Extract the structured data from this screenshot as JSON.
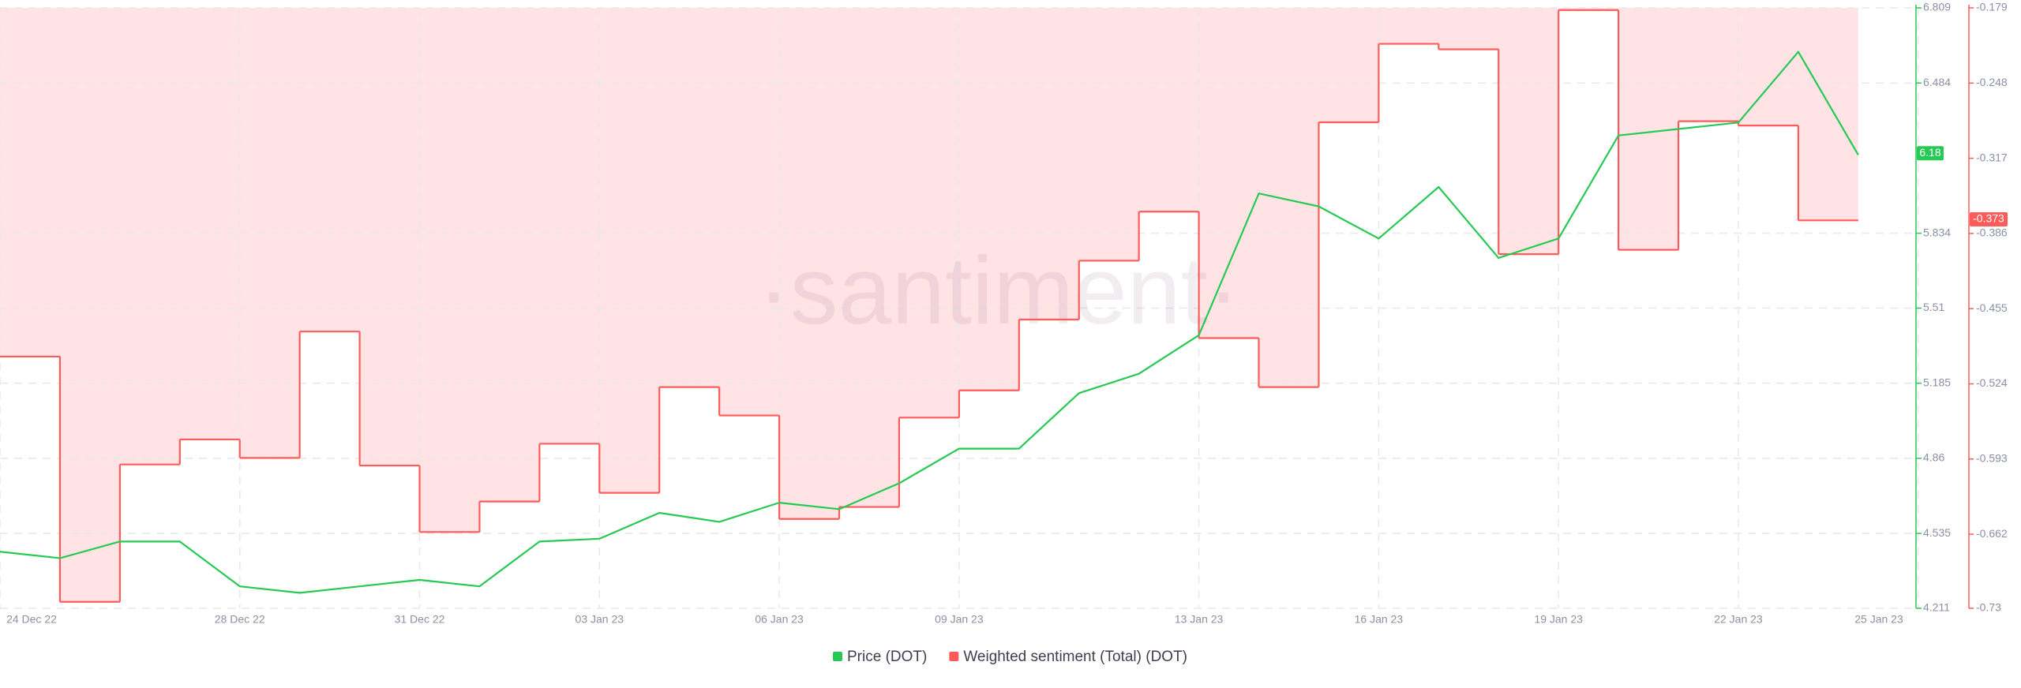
{
  "chart_data": {
    "type": "line",
    "watermark": "·santiment·",
    "categories": [
      "24 Dec 22",
      null,
      null,
      null,
      "28 Dec 22",
      null,
      null,
      "31 Dec 22",
      null,
      null,
      "03 Jan 23",
      null,
      null,
      "06 Jan 23",
      null,
      null,
      "09 Jan 23",
      null,
      null,
      null,
      "13 Jan 23",
      null,
      null,
      "16 Jan 23",
      null,
      null,
      "19 Jan 23",
      null,
      null,
      "22 Jan 23",
      null,
      null,
      "25 Jan 23"
    ],
    "series": [
      {
        "name": "Price (DOT)",
        "color": "#26c953",
        "axis": "y",
        "values": [
          4.456,
          4.428,
          4.5,
          4.5,
          4.306,
          4.278,
          4.306,
          4.334,
          4.306,
          4.5,
          4.512,
          4.624,
          4.585,
          4.668,
          4.64,
          4.752,
          4.902,
          4.902,
          5.142,
          5.226,
          5.393,
          6.006,
          5.95,
          5.811,
          6.034,
          5.727,
          5.811,
          6.257,
          6.285,
          6.313,
          6.619,
          6.173,
          null
        ]
      },
      {
        "name": "Weighted sentiment (Total) (DOT)",
        "color": "#ff5b5b",
        "axis": "y2",
        "values": [
          -0.499,
          -0.724,
          -0.598,
          -0.575,
          -0.592,
          -0.476,
          -0.599,
          -0.66,
          -0.632,
          -0.579,
          -0.624,
          -0.527,
          -0.553,
          -0.648,
          -0.637,
          -0.555,
          -0.53,
          -0.465,
          -0.411,
          -0.366,
          -0.482,
          -0.527,
          -0.284,
          -0.212,
          -0.217,
          -0.405,
          -0.181,
          -0.401,
          -0.283,
          -0.287,
          -0.374,
          null,
          null
        ]
      }
    ],
    "ylim": [
      4.211,
      6.809
    ],
    "yticks": [
      4.211,
      4.535,
      4.86,
      5.185,
      5.51,
      5.834,
      6.484,
      6.809
    ],
    "y2lim": [
      -0.73,
      -0.179
    ],
    "y2ticks": [
      -0.73,
      -0.662,
      -0.593,
      -0.524,
      -0.455,
      -0.386,
      -0.317,
      -0.248,
      -0.179
    ],
    "price_badge": 6.18,
    "sentiment_badge": -0.373,
    "grid": true
  }
}
